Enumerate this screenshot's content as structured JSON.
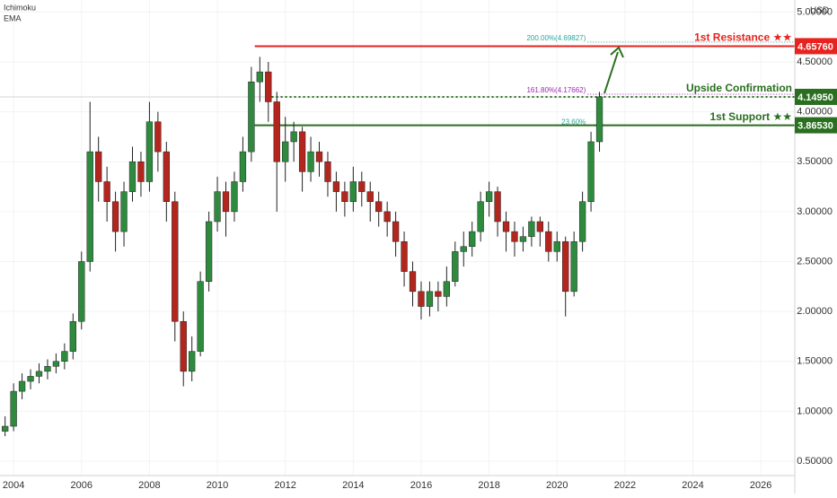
{
  "chart_data": {
    "type": "candlestick",
    "indicators": [
      "Ichimoku",
      "EMA"
    ],
    "currency": "USD",
    "x": [
      2003.75,
      2004.0,
      2004.25,
      2004.5,
      2004.75,
      2005.0,
      2005.25,
      2005.5,
      2005.75,
      2006.0,
      2006.25,
      2006.5,
      2006.75,
      2007.0,
      2007.25,
      2007.5,
      2007.75,
      2008.0,
      2008.25,
      2008.5,
      2008.75,
      2009.0,
      2009.25,
      2009.5,
      2009.75,
      2010.0,
      2010.25,
      2010.5,
      2010.75,
      2011.0,
      2011.25,
      2011.5,
      2011.75,
      2012.0,
      2012.25,
      2012.5,
      2012.75,
      2013.0,
      2013.25,
      2013.5,
      2013.75,
      2014.0,
      2014.25,
      2014.5,
      2014.75,
      2015.0,
      2015.25,
      2015.5,
      2015.75,
      2016.0,
      2016.25,
      2016.5,
      2016.75,
      2017.0,
      2017.25,
      2017.5,
      2017.75,
      2018.0,
      2018.25,
      2018.5,
      2018.75,
      2019.0,
      2019.25,
      2019.5,
      2019.75,
      2020.0,
      2020.25,
      2020.5,
      2020.75,
      2021.0,
      2021.25
    ],
    "open": [
      0.8,
      0.85,
      1.2,
      1.3,
      1.35,
      1.4,
      1.45,
      1.5,
      1.6,
      1.9,
      2.5,
      3.6,
      3.3,
      3.1,
      2.8,
      3.2,
      3.5,
      3.3,
      3.9,
      3.6,
      3.1,
      1.9,
      1.4,
      1.6,
      2.3,
      2.9,
      3.2,
      3.0,
      3.3,
      3.6,
      4.3,
      4.4,
      4.1,
      3.5,
      3.7,
      3.8,
      3.4,
      3.6,
      3.5,
      3.3,
      3.2,
      3.1,
      3.3,
      3.2,
      3.1,
      3.0,
      2.9,
      2.7,
      2.4,
      2.2,
      2.05,
      2.2,
      2.15,
      2.3,
      2.6,
      2.65,
      2.8,
      3.1,
      3.2,
      2.9,
      2.8,
      2.7,
      2.75,
      2.9,
      2.8,
      2.6,
      2.7,
      2.2,
      2.7,
      3.1,
      3.7
    ],
    "high": [
      0.95,
      1.28,
      1.38,
      1.42,
      1.48,
      1.52,
      1.58,
      1.68,
      1.98,
      2.6,
      4.1,
      3.75,
      3.45,
      3.2,
      3.3,
      3.65,
      3.6,
      4.1,
      4.0,
      3.7,
      3.2,
      2.0,
      1.75,
      2.4,
      3.0,
      3.35,
      3.3,
      3.4,
      3.75,
      4.45,
      4.55,
      4.5,
      4.2,
      3.95,
      3.9,
      3.85,
      3.75,
      3.7,
      3.6,
      3.4,
      3.3,
      3.45,
      3.4,
      3.3,
      3.2,
      3.1,
      3.0,
      2.8,
      2.5,
      2.3,
      2.3,
      2.3,
      2.45,
      2.7,
      2.8,
      2.9,
      3.2,
      3.3,
      3.25,
      3.0,
      2.9,
      2.85,
      2.95,
      2.95,
      2.9,
      2.8,
      2.75,
      2.8,
      3.2,
      3.8,
      4.2
    ],
    "low": [
      0.75,
      0.8,
      1.12,
      1.22,
      1.28,
      1.32,
      1.38,
      1.42,
      1.52,
      1.82,
      2.4,
      3.1,
      2.9,
      2.6,
      2.65,
      3.1,
      3.15,
      3.2,
      3.4,
      2.9,
      1.7,
      1.25,
      1.3,
      1.55,
      2.2,
      2.8,
      2.75,
      2.9,
      3.2,
      3.5,
      4.1,
      3.9,
      3.0,
      3.3,
      3.5,
      3.2,
      3.3,
      3.35,
      3.15,
      3.0,
      2.95,
      3.0,
      3.05,
      2.9,
      2.85,
      2.75,
      2.55,
      2.25,
      2.05,
      1.92,
      1.95,
      2.0,
      2.05,
      2.25,
      2.45,
      2.55,
      2.7,
      2.95,
      2.75,
      2.6,
      2.55,
      2.6,
      2.65,
      2.65,
      2.5,
      2.5,
      1.95,
      2.15,
      2.6,
      3.0,
      3.6
    ],
    "close": [
      0.85,
      1.2,
      1.3,
      1.35,
      1.4,
      1.45,
      1.5,
      1.6,
      1.9,
      2.5,
      3.6,
      3.3,
      3.1,
      2.8,
      3.2,
      3.5,
      3.3,
      3.9,
      3.6,
      3.1,
      1.9,
      1.4,
      1.6,
      2.3,
      2.9,
      3.2,
      3.0,
      3.3,
      3.6,
      4.3,
      4.4,
      4.1,
      3.5,
      3.7,
      3.8,
      3.4,
      3.6,
      3.5,
      3.3,
      3.2,
      3.1,
      3.3,
      3.2,
      3.1,
      3.0,
      2.9,
      2.7,
      2.4,
      2.2,
      2.05,
      2.2,
      2.15,
      2.3,
      2.6,
      2.65,
      2.8,
      3.1,
      3.2,
      2.9,
      2.8,
      2.7,
      2.75,
      2.9,
      2.8,
      2.6,
      2.7,
      2.2,
      2.7,
      3.1,
      3.7,
      4.15
    ],
    "up_color": "#2e8b3e",
    "down_color": "#b3261e",
    "xlim": [
      2003.6,
      2027.0
    ],
    "xticks": [
      2004,
      2006,
      2008,
      2010,
      2012,
      2014,
      2016,
      2018,
      2020,
      2022,
      2024,
      2026
    ],
    "ylim": [
      0.356,
      5.12
    ],
    "yticks": [
      {
        "value": 0.5,
        "label": "0.50000"
      },
      {
        "value": 1.0,
        "label": "1.00000"
      },
      {
        "value": 1.5,
        "label": "1.50000"
      },
      {
        "value": 2.0,
        "label": "2.00000"
      },
      {
        "value": 2.5,
        "label": "2.50000"
      },
      {
        "value": 3.0,
        "label": "3.00000"
      },
      {
        "value": 3.5,
        "label": "3.50000"
      },
      {
        "value": 4.0,
        "label": "4.00000"
      },
      {
        "value": 4.5,
        "label": "4.50000"
      },
      {
        "value": 5.0,
        "label": "5.00000"
      }
    ],
    "levels": [
      {
        "label": "1st Resistance ★★",
        "value": 4.6576,
        "value_label": "4.65760",
        "color": "#e8231f",
        "start": 2011.1,
        "style": "solid"
      },
      {
        "label": "Upside Confirmation",
        "value": 4.1495,
        "value_label": "4.14950",
        "color": "#2a6e1f",
        "start": 2011.6,
        "style": "dotted"
      },
      {
        "label": "1st Support ★★",
        "value": 3.8653,
        "value_label": "3.86530",
        "color": "#2a6e1f",
        "start": 2011.1,
        "style": "solid"
      }
    ],
    "fib_levels": [
      {
        "label": "200.00%(4.69827)",
        "value": 4.69827,
        "color": "#26a69a"
      },
      {
        "label": "161.80%(4.17662)",
        "value": 4.17662,
        "color": "#9c27b0"
      },
      {
        "label": "23.60%",
        "value": 3.86,
        "color": "#26a69a"
      }
    ]
  }
}
